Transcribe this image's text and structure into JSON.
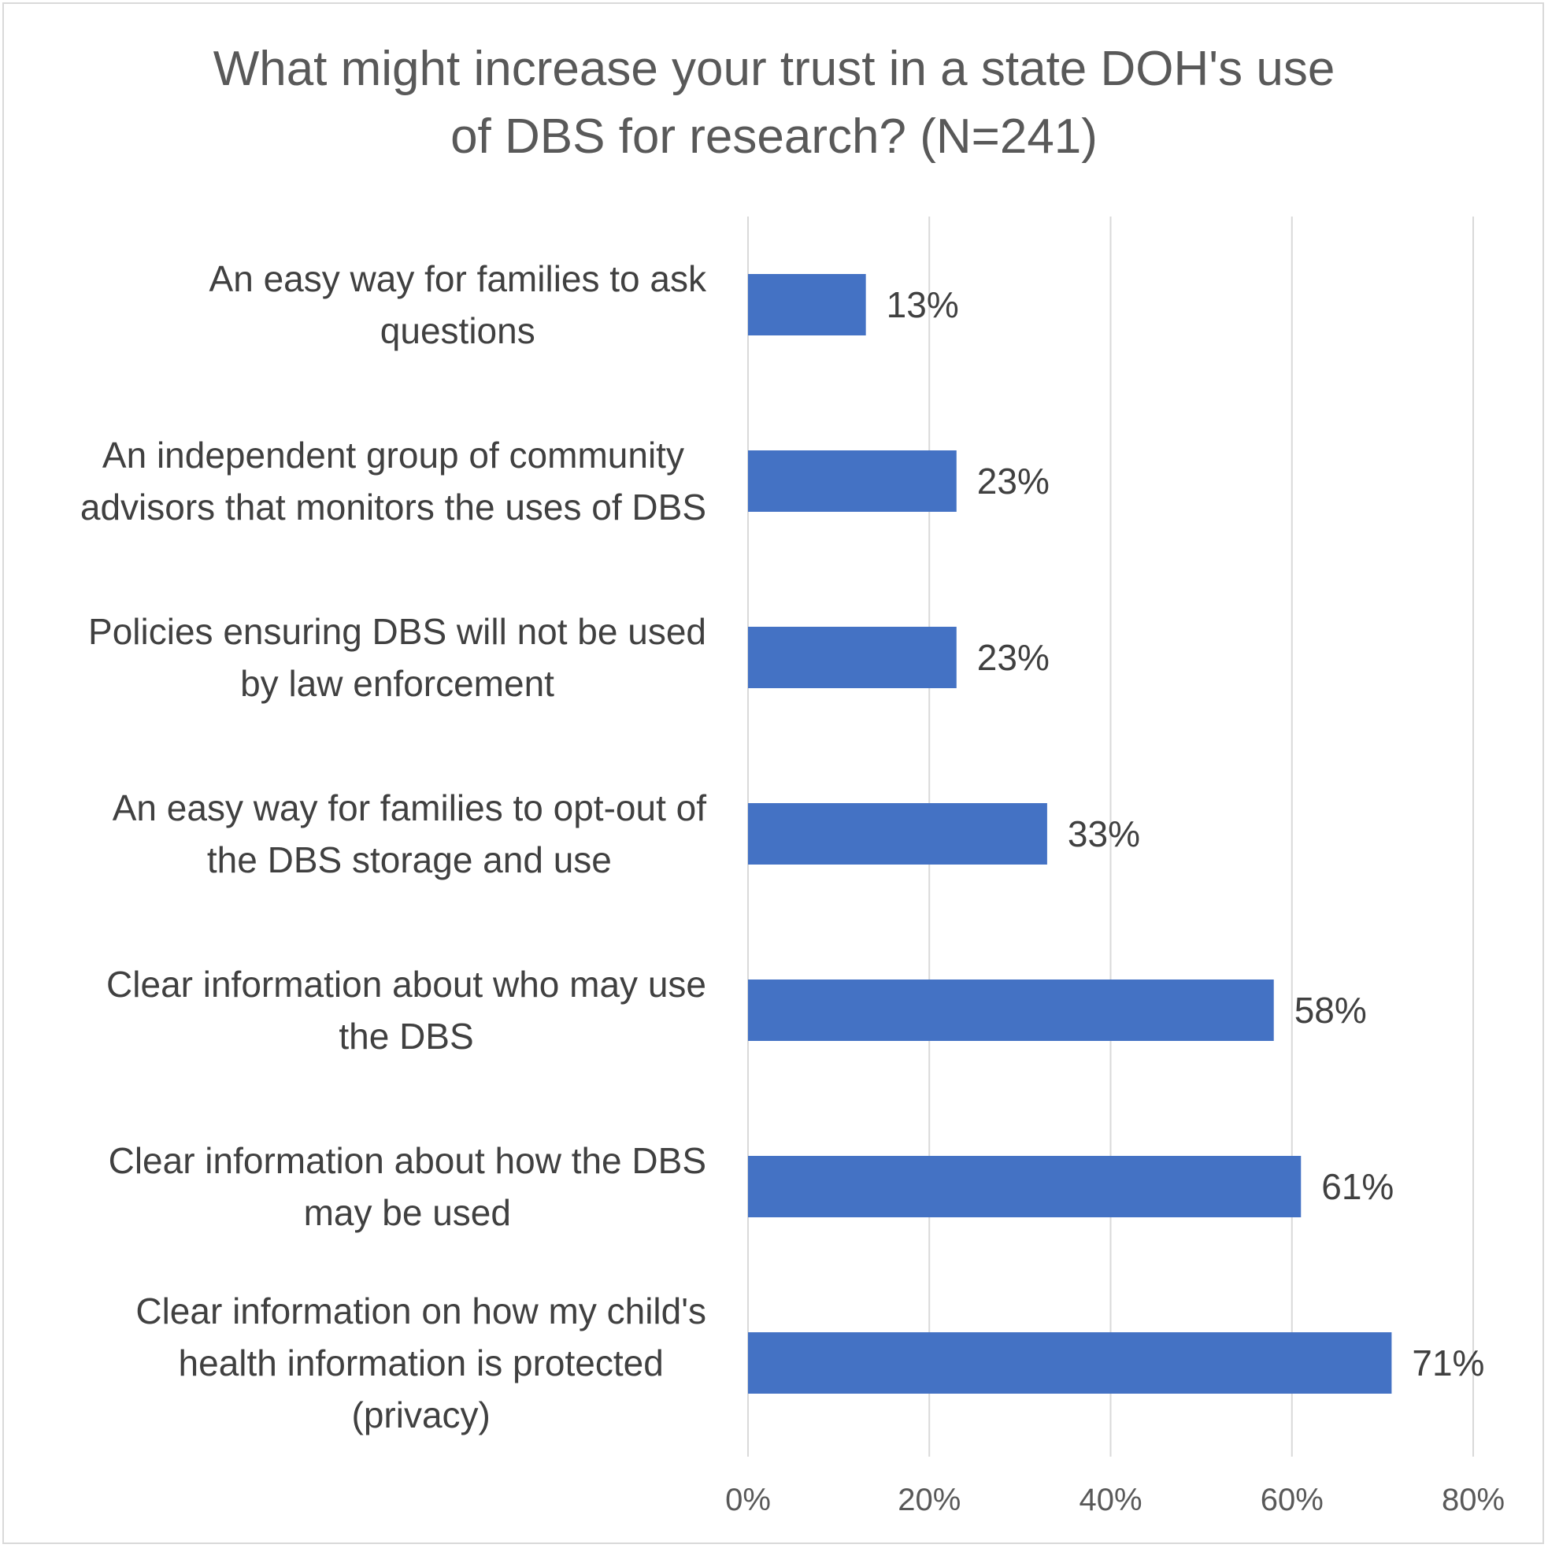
{
  "chart_data": {
    "type": "bar",
    "orientation": "horizontal",
    "title": "What might increase your trust in a state DOH's use of DBS for research? (N=241)",
    "title_lines": [
      "What might increase your trust in a state DOH's use",
      "of DBS for research? (N=241)"
    ],
    "categories": [
      "An easy way for families to ask questions",
      "An independent group of community advisors that monitors the uses of DBS",
      "Policies ensuring DBS will not be used by law enforcement",
      "An easy way for families to opt-out of the DBS storage and use",
      "Clear information about who may use the DBS",
      "Clear information about how the DBS may be used",
      "Clear information on how my child's health information is protected (privacy)"
    ],
    "category_lines": [
      [
        "An easy way for families to ask",
        "questions"
      ],
      [
        "An independent group of community",
        "advisors that monitors the uses of DBS"
      ],
      [
        "Policies ensuring DBS will not be used",
        "by law enforcement"
      ],
      [
        "An easy way for families to opt-out of",
        "the DBS storage and use"
      ],
      [
        "Clear information about who may use",
        "the DBS"
      ],
      [
        "Clear information about how the DBS",
        "may be used"
      ],
      [
        "Clear information on how my child's",
        "health information is protected",
        "(privacy)"
      ]
    ],
    "values": [
      13,
      23,
      23,
      33,
      58,
      61,
      71
    ],
    "value_labels": [
      "13%",
      "23%",
      "23%",
      "33%",
      "58%",
      "61%",
      "71%"
    ],
    "xlim": [
      0,
      80
    ],
    "x_ticks": [
      0,
      20,
      40,
      60,
      80
    ],
    "x_tick_labels": [
      "0%",
      "20%",
      "40%",
      "60%",
      "80%"
    ],
    "xlabel": "",
    "ylabel": "",
    "grid": "vertical",
    "legend": "none",
    "bar_color": "#4472c4",
    "gridline_color": "#d9d9d9",
    "text_color": "#404040"
  }
}
